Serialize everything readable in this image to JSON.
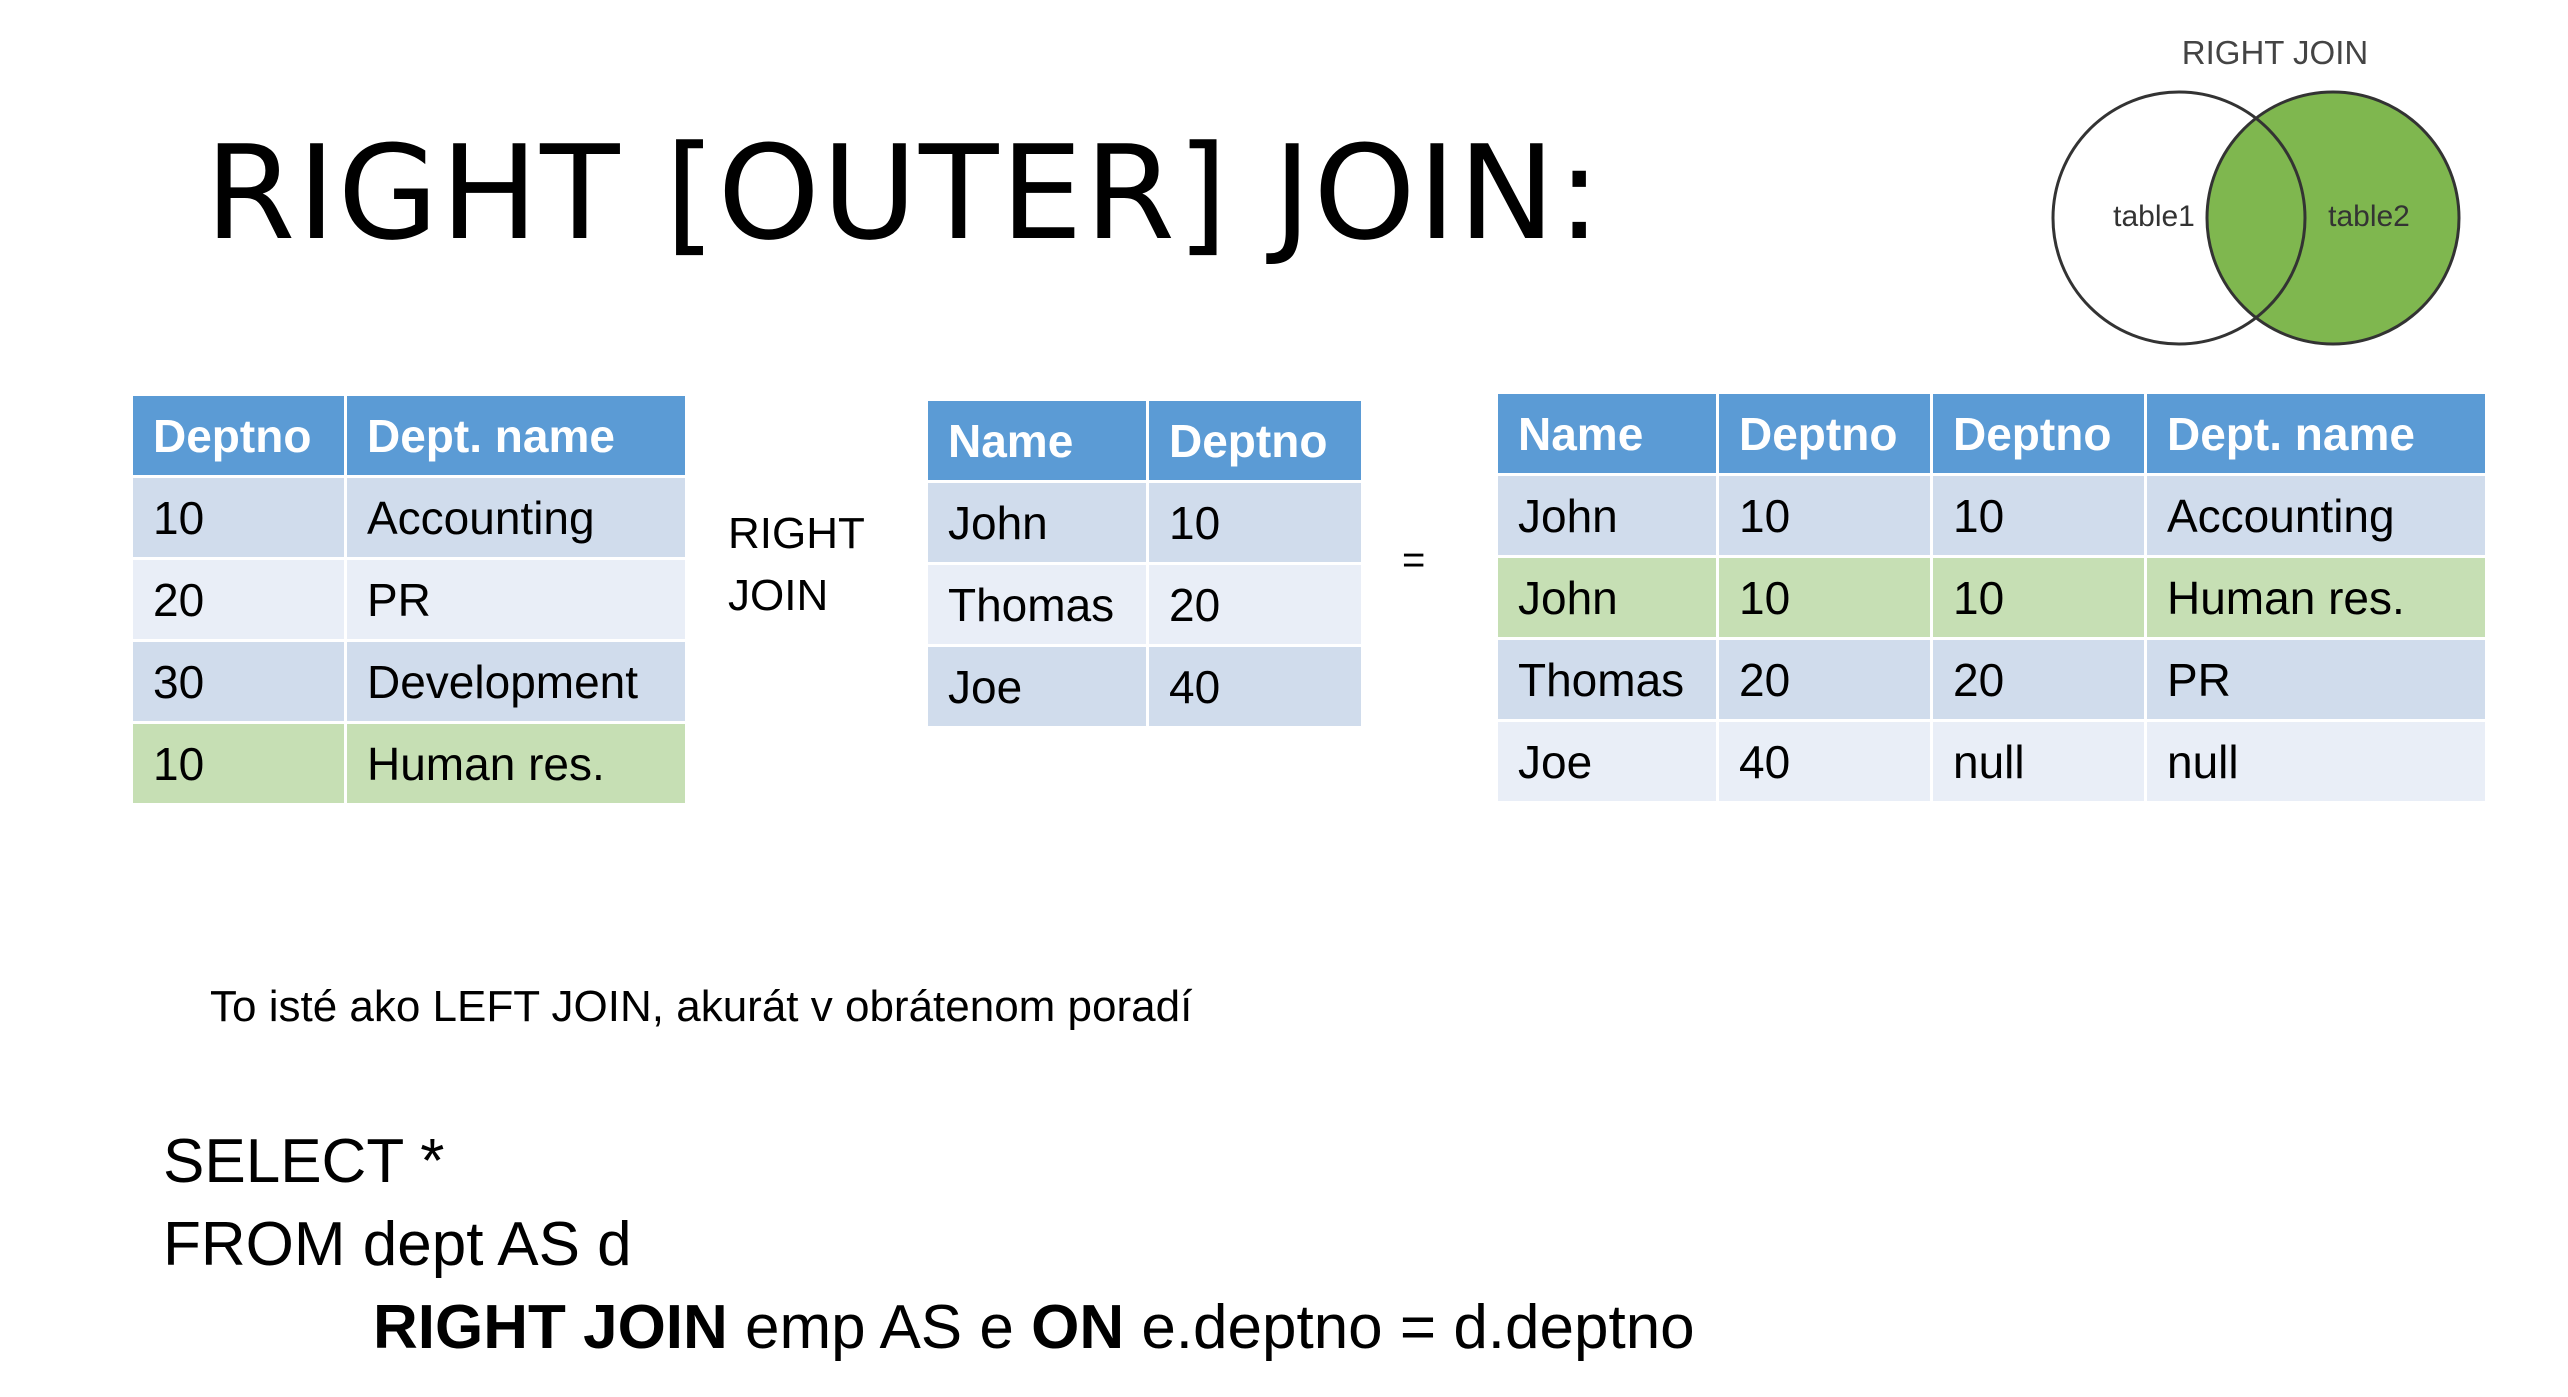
{
  "title": "RIGHT [OUTER] JOIN:",
  "venn": {
    "caption": "RIGHT JOIN",
    "left_label": "table1",
    "right_label": "table2",
    "fill_color": "#7fb74f"
  },
  "dept_table": {
    "headers": [
      "Deptno",
      "Dept. name"
    ],
    "rows": [
      [
        "10",
        "Accounting"
      ],
      [
        "20",
        "PR"
      ],
      [
        "30",
        "Development"
      ],
      [
        "10",
        "Human res."
      ]
    ]
  },
  "operator": [
    "RIGHT",
    "JOIN"
  ],
  "emp_table": {
    "headers": [
      "Name",
      "Deptno"
    ],
    "rows": [
      [
        "John",
        "10"
      ],
      [
        "Thomas",
        "20"
      ],
      [
        "Joe",
        "40"
      ]
    ]
  },
  "equals": "=",
  "result_table": {
    "headers": [
      "Name",
      "Deptno",
      "Deptno",
      "Dept. name"
    ],
    "rows": [
      [
        "John",
        "10",
        "10",
        "Accounting"
      ],
      [
        "John",
        "10",
        "10",
        "Human res."
      ],
      [
        "Thomas",
        "20",
        "20",
        "PR"
      ],
      [
        "Joe",
        "40",
        "null",
        "null"
      ]
    ]
  },
  "colors": {
    "header": "#5b9bd5",
    "band_dark": "#d0dcec",
    "band_light": "#e9eef7",
    "highlight": "#c6dfb4"
  },
  "note": "To isté ako LEFT JOIN, akurát v obrátenom poradí",
  "sql": {
    "line1": "SELECT *",
    "line2": "FROM dept AS d",
    "kw_right_join": "RIGHT JOIN",
    "part_emp": " emp AS e ",
    "kw_on": "ON",
    "part_cond": " e.deptno = d.deptno"
  }
}
